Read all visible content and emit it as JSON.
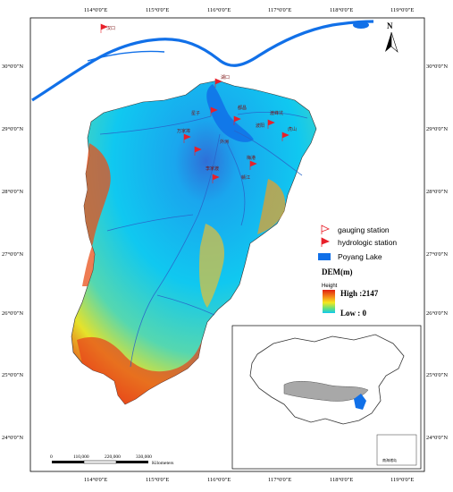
{
  "axes": {
    "top_lon": [
      "114°0'0\"E",
      "115°0'0\"E",
      "116°0'0\"E",
      "117°0'0\"E",
      "118°0'0\"E",
      "119°0'0\"E"
    ],
    "bottom_lon": [
      "114°0'0\"E",
      "115°0'0\"E",
      "116°0'0\"E",
      "117°0'0\"E",
      "118°0'0\"E",
      "119°0'0\"E"
    ],
    "left_lat": [
      "30°0'0\"N",
      "29°0'0\"N",
      "28°0'0\"N",
      "27°0'0\"N",
      "26°0'0\"N",
      "25°0'0\"N",
      "24°0'0\"N"
    ],
    "right_lat": [
      "30°0'0\"N",
      "29°0'0\"N",
      "28°0'0\"N",
      "27°0'0\"N",
      "26°0'0\"N",
      "25°0'0\"N",
      "24°0'0\"N"
    ]
  },
  "north_arrow": {
    "label": "N"
  },
  "legend": {
    "items": [
      {
        "symbol": "outline-flag",
        "label": "gauging station"
      },
      {
        "symbol": "filled-flag",
        "label": "hydrologic station"
      },
      {
        "symbol": "blue-rect",
        "label": "Poyang Lake"
      }
    ],
    "dem_title": "DEM(m)",
    "height_label": "Height",
    "high_label": "High :2147",
    "low_label": "Low : 0"
  },
  "scale_bar": {
    "ticks": [
      "0",
      "110,000",
      "220,000",
      "330,000"
    ],
    "unit": "Kilometers"
  },
  "place_labels": [
    "汉口",
    "湖口",
    "星子",
    "都昌",
    "波阳",
    "渡峰坑",
    "万家埠",
    "外洲",
    "李家渡",
    "梅港",
    "虎山",
    "赣江"
  ],
  "inset": {
    "label": "南海诸岛"
  },
  "colors": {
    "lake": "#1170e8",
    "river": "#2a64c8",
    "dem_high": "#e02010",
    "dem_mid": "#f5e81e",
    "dem_low": "#10c8f0",
    "station_flag": "#e8202a"
  }
}
